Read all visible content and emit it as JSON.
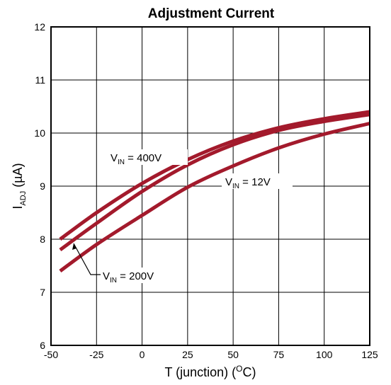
{
  "chart_data": {
    "type": "line",
    "title": "Adjustment Current",
    "xlabel": {
      "main": "T (junction) (",
      "sup": "O",
      "tail": "C)"
    },
    "ylabel": {
      "main": "I",
      "sub": "ADJ",
      "tail": " (µA)"
    },
    "xlim": [
      -50,
      125
    ],
    "ylim": [
      6,
      12
    ],
    "xticks": [
      -50,
      -25,
      0,
      25,
      50,
      75,
      100,
      125
    ],
    "yticks": [
      6,
      7,
      8,
      9,
      10,
      11,
      12
    ],
    "grid": true,
    "line_color": "#a31a2c",
    "series": [
      {
        "name": "VIN = 400V",
        "x": [
          -45,
          -25,
          0,
          25,
          50,
          75,
          100,
          125
        ],
        "y": [
          8.0,
          8.5,
          9.05,
          9.5,
          9.85,
          10.1,
          10.27,
          10.4
        ]
      },
      {
        "name": "VIN = 200V",
        "x": [
          -45,
          -25,
          0,
          25,
          50,
          75,
          100,
          125
        ],
        "y": [
          7.8,
          8.3,
          8.9,
          9.4,
          9.78,
          10.05,
          10.22,
          10.35
        ]
      },
      {
        "name": "VIN = 12V",
        "x": [
          -45,
          -25,
          0,
          25,
          50,
          75,
          100,
          125
        ],
        "y": [
          7.4,
          7.9,
          8.45,
          8.98,
          9.38,
          9.72,
          9.98,
          10.18
        ]
      }
    ],
    "annotations": [
      {
        "id": "vin-400v",
        "v": "V",
        "sub": "IN",
        "rest": " = 400V"
      },
      {
        "id": "vin-12v",
        "v": "V",
        "sub": "IN",
        "rest": " = 12V"
      },
      {
        "id": "vin-200v",
        "v": "V",
        "sub": "IN",
        "rest": " = 200V"
      }
    ]
  }
}
